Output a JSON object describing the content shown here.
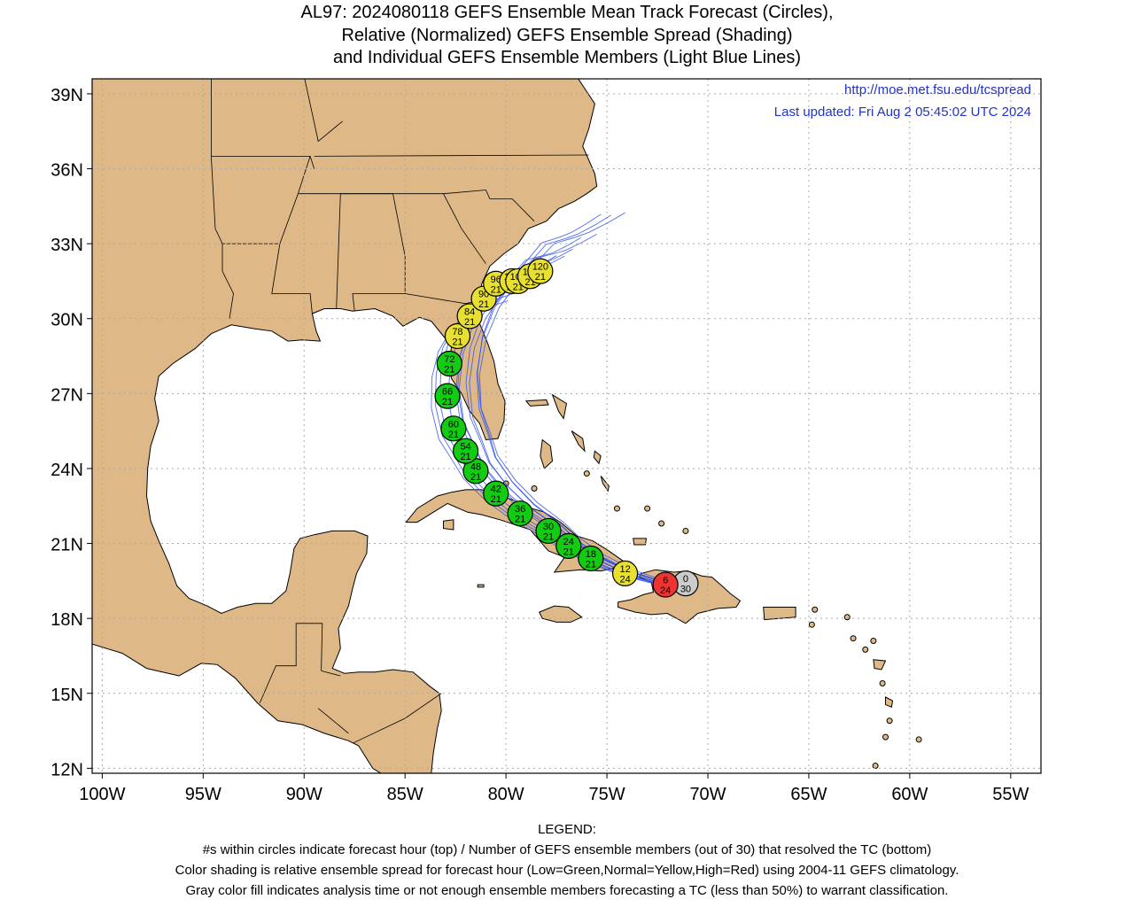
{
  "title": {
    "line1": "AL97: 2024080118 GEFS Ensemble Mean Track Forecast (Circles),",
    "line2": "Relative (Normalized) GEFS Ensemble Spread (Shading)",
    "line3": "and Individual GEFS Ensemble Members (Light Blue Lines)"
  },
  "header_links": {
    "url": "http://moe.met.fsu.edu/tcspread",
    "updated": "Last updated: Fri Aug 2 05:45:02 UTC 2024"
  },
  "axes": {
    "lat_labels": [
      "39N",
      "36N",
      "33N",
      "30N",
      "27N",
      "24N",
      "21N",
      "18N",
      "15N",
      "12N"
    ],
    "lat_values": [
      39,
      36,
      33,
      30,
      27,
      24,
      21,
      18,
      15,
      12
    ],
    "lon_labels": [
      "100W",
      "95W",
      "90W",
      "85W",
      "80W",
      "75W",
      "70W",
      "65W",
      "60W",
      "55W"
    ],
    "lon_values": [
      -100,
      -95,
      -90,
      -85,
      -80,
      -75,
      -70,
      -65,
      -60,
      -55
    ],
    "lat_range": [
      11.8,
      39.6
    ],
    "lon_range": [
      -100.5,
      -53.5
    ]
  },
  "colors": {
    "land": "#deb887",
    "water": "#ffffff",
    "member_line": "#3355ee",
    "green": "#11cc11",
    "yellow": "#e8e030",
    "red": "#ee3333",
    "gray": "#cccccc",
    "grid": "#aaaaaa"
  },
  "track_points": [
    {
      "hour": "0",
      "members": "30",
      "lon": -71.1,
      "lat": 19.4,
      "color": "gray"
    },
    {
      "hour": "6",
      "members": "24",
      "lon": -72.1,
      "lat": 19.35,
      "color": "red"
    },
    {
      "hour": "12",
      "members": "24",
      "lon": -74.1,
      "lat": 19.8,
      "color": "yellow"
    },
    {
      "hour": "18",
      "members": "21",
      "lon": -75.8,
      "lat": 20.4,
      "color": "green"
    },
    {
      "hour": "24",
      "members": "21",
      "lon": -76.9,
      "lat": 20.9,
      "color": "green"
    },
    {
      "hour": "30",
      "members": "21",
      "lon": -77.9,
      "lat": 21.5,
      "color": "green"
    },
    {
      "hour": "36",
      "members": "21",
      "lon": -79.3,
      "lat": 22.2,
      "color": "green"
    },
    {
      "hour": "42",
      "members": "21",
      "lon": -80.5,
      "lat": 23.0,
      "color": "green"
    },
    {
      "hour": "48",
      "members": "21",
      "lon": -81.5,
      "lat": 23.9,
      "color": "green"
    },
    {
      "hour": "54",
      "members": "21",
      "lon": -82.0,
      "lat": 24.7,
      "color": "green"
    },
    {
      "hour": "60",
      "members": "21",
      "lon": -82.6,
      "lat": 25.6,
      "color": "green"
    },
    {
      "hour": "66",
      "members": "21",
      "lon": -82.9,
      "lat": 26.9,
      "color": "green"
    },
    {
      "hour": "72",
      "members": "21",
      "lon": -82.8,
      "lat": 28.2,
      "color": "green"
    },
    {
      "hour": "78",
      "members": "21",
      "lon": -82.4,
      "lat": 29.3,
      "color": "yellow"
    },
    {
      "hour": "84",
      "members": "21",
      "lon": -81.8,
      "lat": 30.1,
      "color": "yellow"
    },
    {
      "hour": "90",
      "members": "21",
      "lon": -81.1,
      "lat": 30.8,
      "color": "yellow"
    },
    {
      "hour": "96",
      "members": "21",
      "lon": -80.5,
      "lat": 31.4,
      "color": "yellow"
    },
    {
      "hour": "102",
      "members": "21",
      "lon": -79.7,
      "lat": 31.5,
      "color": "yellow"
    },
    {
      "hour": "108",
      "members": "21",
      "lon": -79.4,
      "lat": 31.5,
      "color": "yellow"
    },
    {
      "hour": "114",
      "members": "21",
      "lon": -78.8,
      "lat": 31.7,
      "color": "yellow"
    },
    {
      "hour": "120",
      "members": "21",
      "lon": -78.3,
      "lat": 31.9,
      "color": "yellow"
    }
  ],
  "legend": {
    "heading": "LEGEND:",
    "line1": "#s within circles indicate forecast hour (top) / Number of GEFS ensemble members (out of 30) that resolved the TC (bottom)",
    "line2": "Color shading is relative ensemble spread for forecast hour (Low=Green,Normal=Yellow,High=Red) using 2004-11 GEFS climatology.",
    "line3": "Gray color fill indicates analysis time or not enough ensemble members forecasting a TC (less than 50%) to warrant classification."
  }
}
